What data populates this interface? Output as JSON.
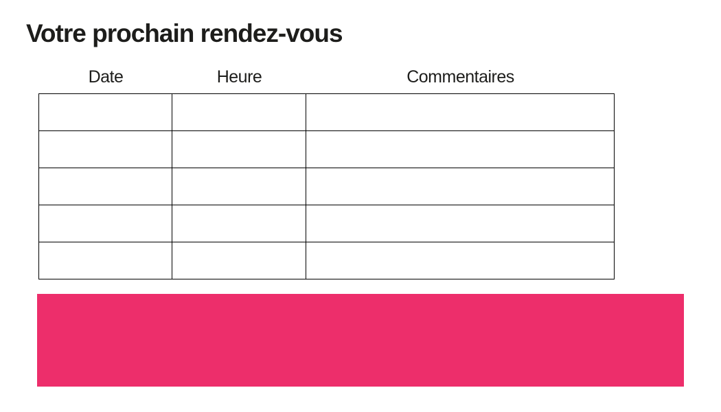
{
  "page": {
    "title": "Votre prochain rendez-vous",
    "background": "#ffffff",
    "text_color": "#1d1d1b"
  },
  "table": {
    "columns": [
      {
        "label": "Date"
      },
      {
        "label": "Heure"
      },
      {
        "label": "Commentaires"
      }
    ],
    "rows": [
      [
        "",
        "",
        ""
      ],
      [
        "",
        "",
        ""
      ],
      [
        "",
        "",
        ""
      ],
      [
        "",
        "",
        ""
      ],
      [
        "",
        "",
        ""
      ]
    ],
    "border_color": "#000000"
  },
  "banner": {
    "color": "#ED2E6B"
  }
}
